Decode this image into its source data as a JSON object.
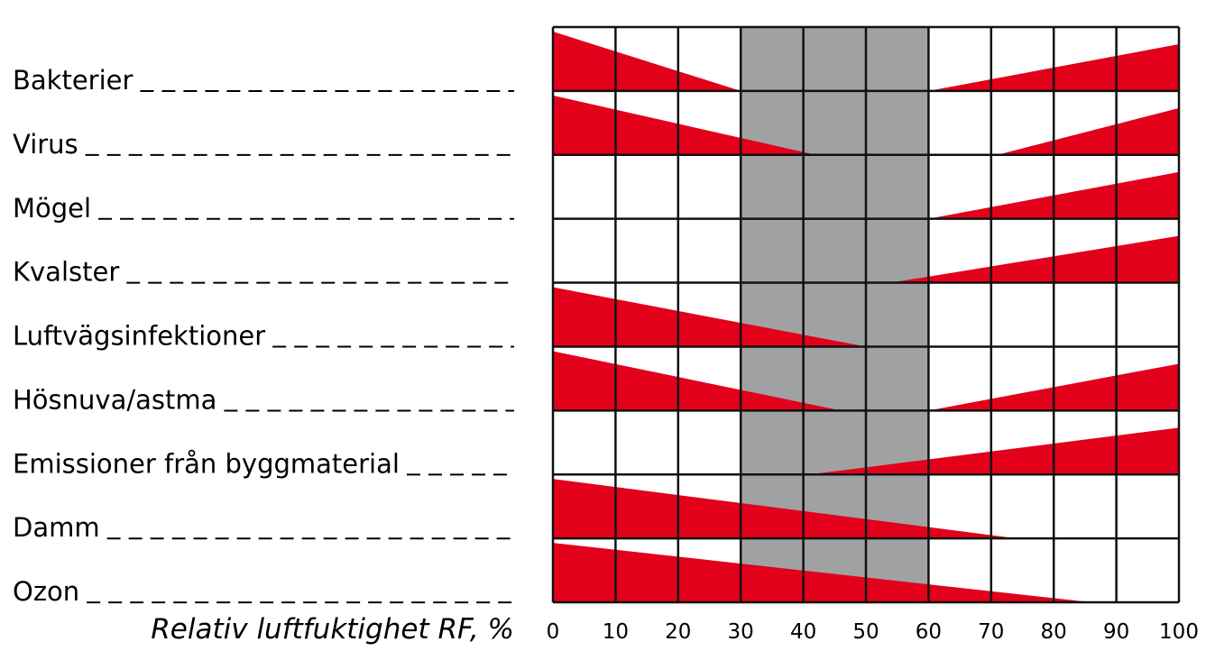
{
  "chart_data": {
    "type": "bar",
    "title": "",
    "xlabel": "Relativ luftfuktighet RF, %",
    "ylabel": "",
    "xlim": [
      0,
      100
    ],
    "xticks": [
      0,
      10,
      20,
      30,
      40,
      50,
      60,
      70,
      80,
      90,
      100
    ],
    "optimal_zone": [
      30,
      60
    ],
    "categories": [
      "Bakterier",
      "Virus",
      "Mögel",
      "Kvalster",
      "Luftvägsinfektioner",
      "Hösnuva/astma",
      "Emissioner från byggmaterial",
      "Damm",
      "Ozon"
    ],
    "series": [
      {
        "low_humidity_wedge_end": [
          30,
          42,
          null,
          null,
          50,
          46,
          null,
          74,
          86
        ],
        "high_humidity_wedge_start": [
          60,
          71,
          60,
          54,
          null,
          60,
          41,
          null,
          null
        ]
      }
    ],
    "colors": {
      "wedge": "#e2001a",
      "optimal": "#a0a1a3",
      "grid": "#111111"
    },
    "grid": true
  }
}
